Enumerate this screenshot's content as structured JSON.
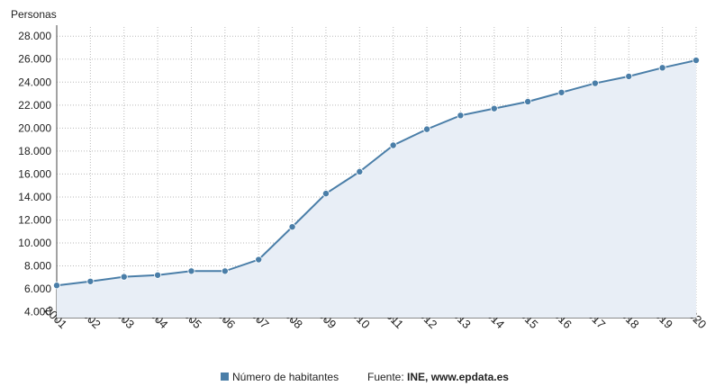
{
  "chart_data": {
    "type": "area",
    "ylabel": "Personas",
    "x": [
      "2001",
      "2002",
      "2003",
      "2004",
      "2005",
      "2006",
      "2007",
      "2008",
      "2009",
      "2010",
      "2011",
      "2012",
      "2013",
      "2014",
      "2015",
      "2016",
      "2017",
      "2018",
      "2019",
      "2020"
    ],
    "series": [
      {
        "name": "Número de habitantes",
        "values": [
          6300,
          6650,
          7050,
          7200,
          7550,
          7550,
          8550,
          11400,
          14300,
          16200,
          18500,
          19900,
          21100,
          21700,
          22300,
          23100,
          23900,
          24500,
          25250,
          25900
        ]
      }
    ],
    "ylim": [
      3500,
      28800
    ],
    "yticks": [
      4000,
      6000,
      8000,
      10000,
      12000,
      14000,
      16000,
      18000,
      20000,
      22000,
      24000,
      26000,
      28000
    ],
    "ytick_labels": [
      "4.000",
      "6.000",
      "8.000",
      "10.000",
      "12.000",
      "14.000",
      "16.000",
      "18.000",
      "20.000",
      "22.000",
      "24.000",
      "26.000",
      "28.000"
    ],
    "grid": true,
    "legend_position": "bottom",
    "line_color": "#4a7ea8",
    "fill_color": "#e8eef6"
  },
  "legend": {
    "series_label": "Número de habitantes",
    "source_prefix": "Fuente: ",
    "source_name": "INE, www.epdata.es"
  }
}
